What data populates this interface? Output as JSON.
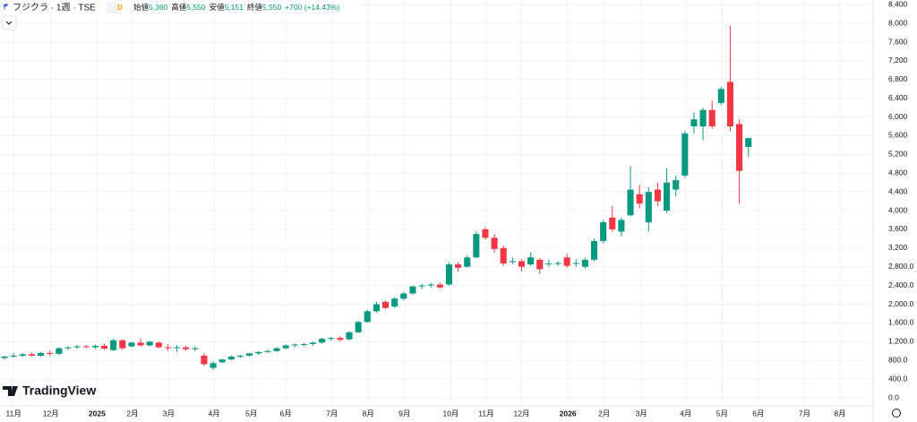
{
  "chart_data": {
    "type": "candlestick",
    "title": "フジクラ · 1週 · TSE",
    "badge": "D",
    "ohlc_labels": [
      "始値",
      "高値",
      "安値",
      "終値"
    ],
    "ohlc_values": [
      "5,360",
      "5,550",
      "5,151",
      "5,550"
    ],
    "change": "+700 (+14.43%)",
    "brand": "TradingView",
    "up_color": "#089981",
    "down_color": "#f23645",
    "grid": true,
    "open": [
      850,
      880,
      900,
      930,
      900,
      960,
      940,
      1060,
      1080,
      1100,
      1080,
      1110,
      1020,
      1230,
      1100,
      1180,
      1120,
      1180,
      1080,
      1060,
      1080,
      1040,
      900,
      640,
      760,
      820,
      880,
      900,
      950,
      980,
      1000,
      1060,
      1120,
      1140,
      1150,
      1180,
      1260,
      1280,
      1250,
      1400,
      1620,
      1850,
      2050,
      1950,
      2120,
      2230,
      2380,
      2400,
      2420,
      2420,
      2850,
      2800,
      3000,
      3600,
      3420,
      3200,
      2900,
      2920,
      2850,
      2950,
      2850,
      2870,
      3000,
      2870,
      2800,
      2950,
      3350,
      3850,
      3550,
      3900,
      4350,
      3750,
      4450,
      4000,
      4450,
      4750,
      5800,
      5800,
      6150,
      6300,
      6750,
      5850,
      5360
    ],
    "high": [
      900,
      960,
      950,
      970,
      980,
      1010,
      1080,
      1100,
      1130,
      1130,
      1140,
      1160,
      1260,
      1250,
      1200,
      1270,
      1220,
      1200,
      1150,
      1120,
      1110,
      1100,
      960,
      780,
      830,
      900,
      920,
      960,
      1000,
      1030,
      1080,
      1140,
      1160,
      1170,
      1200,
      1280,
      1300,
      1320,
      1420,
      1650,
      1880,
      2050,
      2080,
      2150,
      2260,
      2400,
      2440,
      2460,
      2460,
      2900,
      2900,
      3050,
      3560,
      3650,
      3500,
      3250,
      3000,
      2960,
      3100,
      2980,
      2950,
      2920,
      3080,
      2960,
      3000,
      3400,
      3800,
      4100,
      3850,
      4950,
      4550,
      4500,
      4600,
      4900,
      4750,
      5700,
      6100,
      6200,
      6350,
      6650,
      7950,
      5950,
      5550
    ],
    "low": [
      820,
      860,
      870,
      890,
      880,
      900,
      920,
      1020,
      1050,
      1060,
      1050,
      1030,
      1000,
      1020,
      1080,
      1100,
      1100,
      1060,
      1000,
      980,
      1000,
      990,
      680,
      600,
      740,
      800,
      850,
      880,
      920,
      960,
      980,
      1040,
      1080,
      1100,
      1120,
      1160,
      1220,
      1200,
      1230,
      1380,
      1600,
      1820,
      1900,
      1920,
      2080,
      2200,
      2320,
      2350,
      2330,
      2400,
      2700,
      2780,
      2980,
      3380,
      3100,
      2820,
      2860,
      2700,
      2820,
      2650,
      2800,
      2820,
      2780,
      2800,
      2760,
      2920,
      3300,
      3550,
      3450,
      3880,
      4050,
      3550,
      4100,
      3950,
      4300,
      4700,
      5650,
      5500,
      5750,
      6250,
      5700,
      4150,
      5151
    ],
    "close": [
      880,
      900,
      930,
      900,
      960,
      940,
      1060,
      1080,
      1100,
      1080,
      1110,
      1050,
      1230,
      1060,
      1180,
      1120,
      1200,
      1080,
      1060,
      1080,
      1040,
      1060,
      720,
      740,
      820,
      880,
      900,
      950,
      980,
      1000,
      1060,
      1120,
      1140,
      1150,
      1180,
      1260,
      1280,
      1240,
      1400,
      1620,
      1850,
      2000,
      1920,
      2120,
      2230,
      2380,
      2400,
      2420,
      2360,
      2850,
      2780,
      3000,
      3500,
      3420,
      3180,
      2870,
      2920,
      2800,
      3000,
      2750,
      2870,
      2880,
      2820,
      2880,
      2950,
      3350,
      3750,
      3600,
      3800,
      4450,
      4150,
      4400,
      4200,
      4600,
      4650,
      5650,
      5950,
      6150,
      5800,
      6600,
      5800,
      4850,
      5550
    ],
    "ylim": [
      -210,
      8500
    ],
    "yticks": [
      {
        "value": 0,
        "label": "0.0"
      },
      {
        "value": 400,
        "label": "400.0"
      },
      {
        "value": 800,
        "label": "800.0"
      },
      {
        "value": 1200,
        "label": "1,200.0"
      },
      {
        "value": 1600,
        "label": "1,600.0"
      },
      {
        "value": 2000,
        "label": "2,000.0"
      },
      {
        "value": 2400,
        "label": "2,400.0"
      },
      {
        "value": 2800,
        "label": "2,800.0"
      },
      {
        "value": 3200,
        "label": "3,200"
      },
      {
        "value": 3600,
        "label": "3,600"
      },
      {
        "value": 4000,
        "label": "4,000"
      },
      {
        "value": 4400,
        "label": "4,400"
      },
      {
        "value": 4800,
        "label": "4,800"
      },
      {
        "value": 5200,
        "label": "5,200"
      },
      {
        "value": 5600,
        "label": "5,600"
      },
      {
        "value": 6000,
        "label": "6,000"
      },
      {
        "value": 6400,
        "label": "6,400"
      },
      {
        "value": 6800,
        "label": "6,800"
      },
      {
        "value": 7200,
        "label": "7,200"
      },
      {
        "value": 7600,
        "label": "7,600"
      },
      {
        "value": 8000,
        "label": "8,000"
      },
      {
        "value": 8400,
        "label": "8,400"
      }
    ],
    "xlim": [
      -0.5,
      95.75
    ],
    "xticks": [
      {
        "value": 1,
        "label": "11月"
      },
      {
        "value": 5.1,
        "label": "12月"
      },
      {
        "value": 10.2,
        "label": "2025"
      },
      {
        "value": 14.1,
        "label": "2月"
      },
      {
        "value": 18.1,
        "label": "3月"
      },
      {
        "value": 23.1,
        "label": "4月"
      },
      {
        "value": 27.2,
        "label": "5月"
      },
      {
        "value": 31,
        "label": "6月"
      },
      {
        "value": 36.1,
        "label": "7月"
      },
      {
        "value": 40.1,
        "label": "8月"
      },
      {
        "value": 44.1,
        "label": "9月"
      },
      {
        "value": 49.2,
        "label": "10月"
      },
      {
        "value": 53.1,
        "label": "11月"
      },
      {
        "value": 57,
        "label": "12月"
      },
      {
        "value": 62.1,
        "label": "2026"
      },
      {
        "value": 66.1,
        "label": "2月"
      },
      {
        "value": 70.2,
        "label": "3月"
      },
      {
        "value": 75.1,
        "label": "4月"
      },
      {
        "value": 79.1,
        "label": "5月"
      },
      {
        "value": 83.1,
        "label": "6月"
      },
      {
        "value": 88.2,
        "label": "7月"
      },
      {
        "value": 92.1,
        "label": "8月"
      }
    ]
  }
}
